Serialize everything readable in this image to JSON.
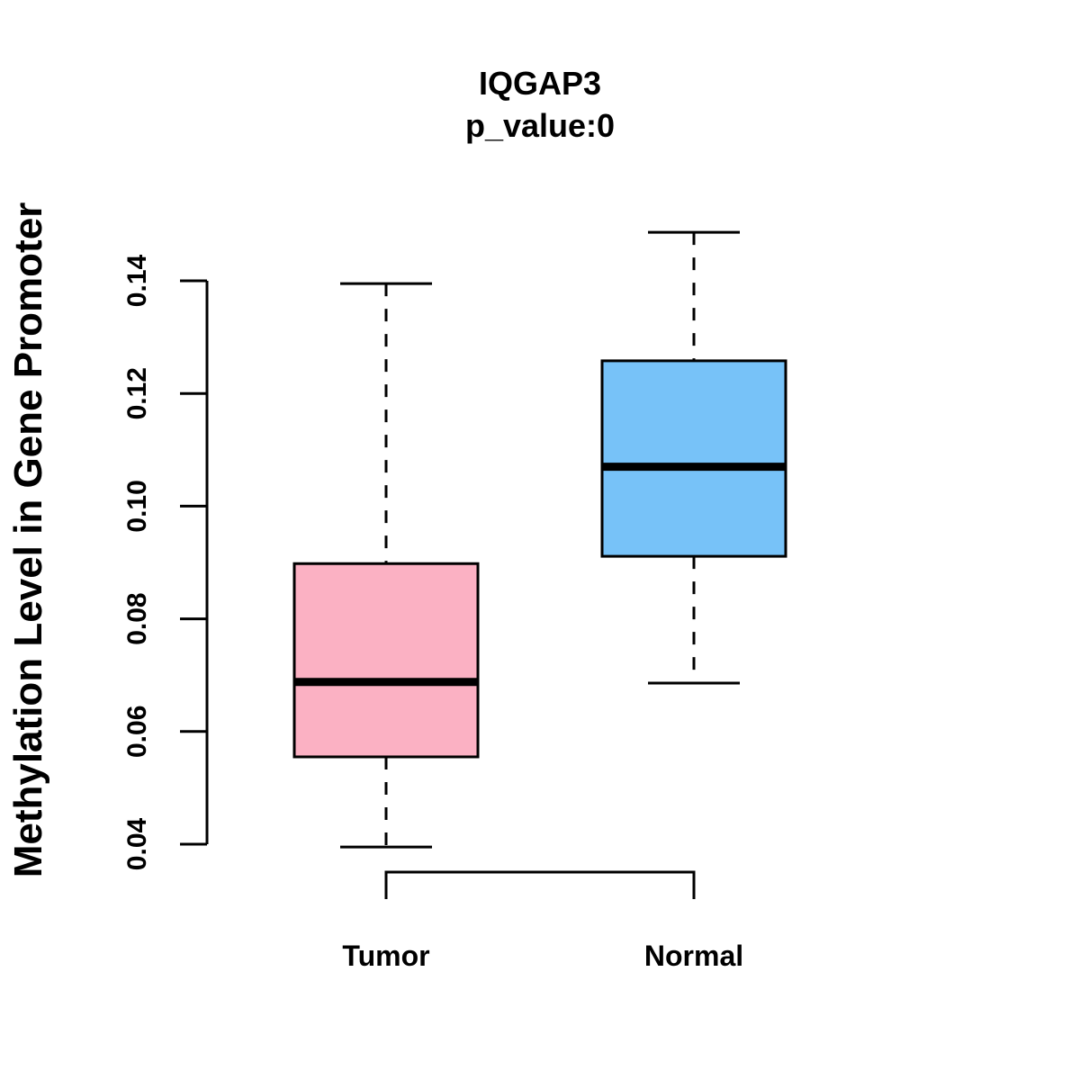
{
  "chart_data": {
    "type": "boxplot",
    "title": "IQGAP3",
    "subtitle": "p_value:0",
    "xlabel": "",
    "ylabel": "Methylation Level in Gene Promoter",
    "ylim": [
      0.04,
      0.14
    ],
    "yticks": [
      "0.04",
      "0.06",
      "0.08",
      "0.10",
      "0.12",
      "0.14"
    ],
    "categories": [
      "Tumor",
      "Normal"
    ],
    "series": [
      {
        "name": "Tumor",
        "color": "#FBB1C3",
        "whisker_low": 0.0395,
        "q1": 0.0555,
        "median": 0.0688,
        "q3": 0.0898,
        "whisker_high": 0.1395
      },
      {
        "name": "Normal",
        "color": "#77C2F8",
        "whisker_low": 0.0686,
        "q1": 0.0911,
        "median": 0.107,
        "q3": 0.1258,
        "whisker_high": 0.1486
      }
    ],
    "significance_bracket": {
      "from": "Tumor",
      "to": "Normal",
      "label": ""
    }
  }
}
